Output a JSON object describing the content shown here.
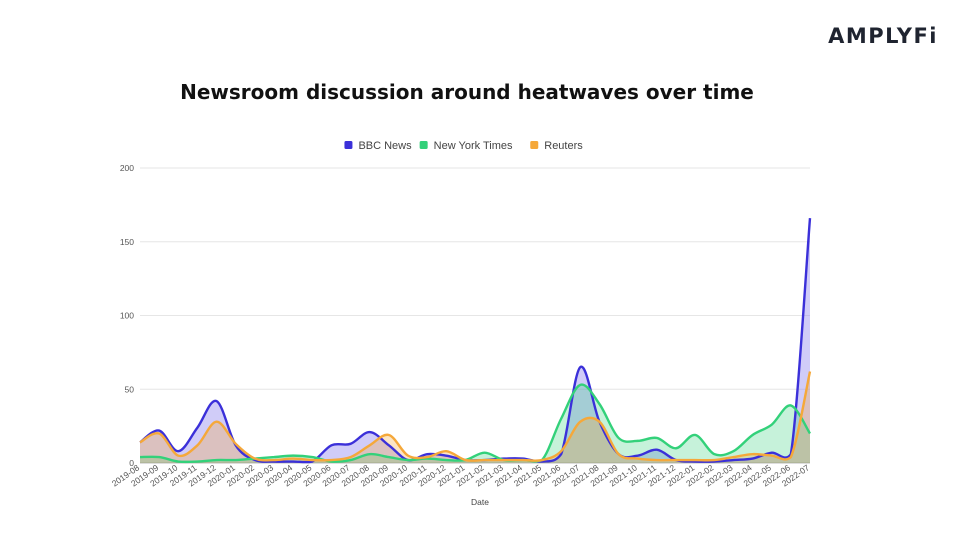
{
  "brand": "AMPLYFi",
  "chart_data": {
    "type": "area",
    "title": "Newsroom discussion around heatwaves over time",
    "xlabel": "Date",
    "ylabel": "",
    "ylim": [
      0,
      200
    ],
    "yticks": [
      0,
      50,
      100,
      150,
      200
    ],
    "legend_position": "top-center",
    "grid": true,
    "categories": [
      "2019-08",
      "2019-09",
      "2019-10",
      "2019-11",
      "2019-12",
      "2020-01",
      "2020-02",
      "2020-03",
      "2020-04",
      "2020-05",
      "2020-06",
      "2020-07",
      "2020-08",
      "2020-09",
      "2020-10",
      "2020-11",
      "2020-12",
      "2021-01",
      "2021-02",
      "2021-03",
      "2021-04",
      "2021-05",
      "2021-06",
      "2021-07",
      "2021-08",
      "2021-09",
      "2021-10",
      "2021-11",
      "2021-12",
      "2022-01",
      "2022-02",
      "2022-03",
      "2022-04",
      "2022-05",
      "2022-06",
      "2022-07"
    ],
    "series": [
      {
        "name": "BBC News",
        "color": "#3b30d9",
        "fill": "rgba(120,110,235,0.35)",
        "values": [
          14,
          22,
          8,
          24,
          42,
          12,
          2,
          1,
          1,
          1,
          12,
          13,
          21,
          12,
          2,
          6,
          5,
          2,
          2,
          3,
          3,
          1,
          6,
          65,
          28,
          6,
          5,
          9,
          2,
          1,
          1,
          2,
          3,
          7,
          6,
          166
        ]
      },
      {
        "name": "New York Times",
        "color": "#33d17a",
        "fill": "rgba(51,209,122,0.28)",
        "values": [
          4,
          4,
          1,
          1,
          2,
          2,
          3,
          4,
          5,
          4,
          1,
          2,
          6,
          4,
          2,
          3,
          2,
          2,
          7,
          2,
          2,
          2,
          30,
          53,
          40,
          17,
          15,
          17,
          10,
          19,
          6,
          8,
          19,
          26,
          39,
          20
        ]
      },
      {
        "name": "Reuters",
        "color": "#f5a83a",
        "fill": "rgba(245,168,58,0.30)",
        "values": [
          14,
          20,
          5,
          12,
          28,
          13,
          3,
          2,
          3,
          2,
          2,
          4,
          12,
          19,
          5,
          4,
          8,
          2,
          2,
          2,
          2,
          2,
          8,
          28,
          28,
          6,
          3,
          2,
          2,
          2,
          2,
          4,
          6,
          5,
          4,
          62
        ]
      }
    ]
  }
}
